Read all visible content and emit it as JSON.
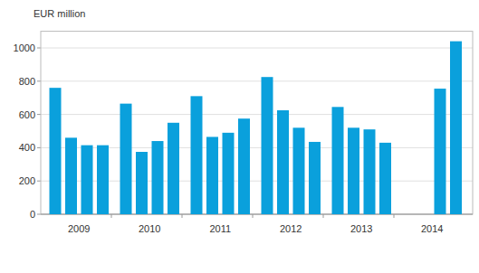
{
  "chart_data": {
    "type": "bar",
    "y_label": "EUR million",
    "categories": [
      "2009",
      null,
      null,
      null,
      "2010",
      null,
      null,
      null,
      "2011",
      null,
      null,
      null,
      "2012",
      null,
      null,
      null,
      "2013",
      null,
      null,
      null,
      "2014",
      null,
      null,
      null
    ],
    "values": [
      760,
      460,
      415,
      415,
      665,
      375,
      440,
      550,
      710,
      465,
      490,
      575,
      825,
      625,
      520,
      435,
      645,
      520,
      510,
      430,
      null,
      null,
      755,
      1040
    ],
    "color": "#0aa0dc",
    "ylim": [
      0,
      1100
    ],
    "yticks": [
      0,
      200,
      400,
      600,
      800,
      1000
    ],
    "grid": true
  }
}
